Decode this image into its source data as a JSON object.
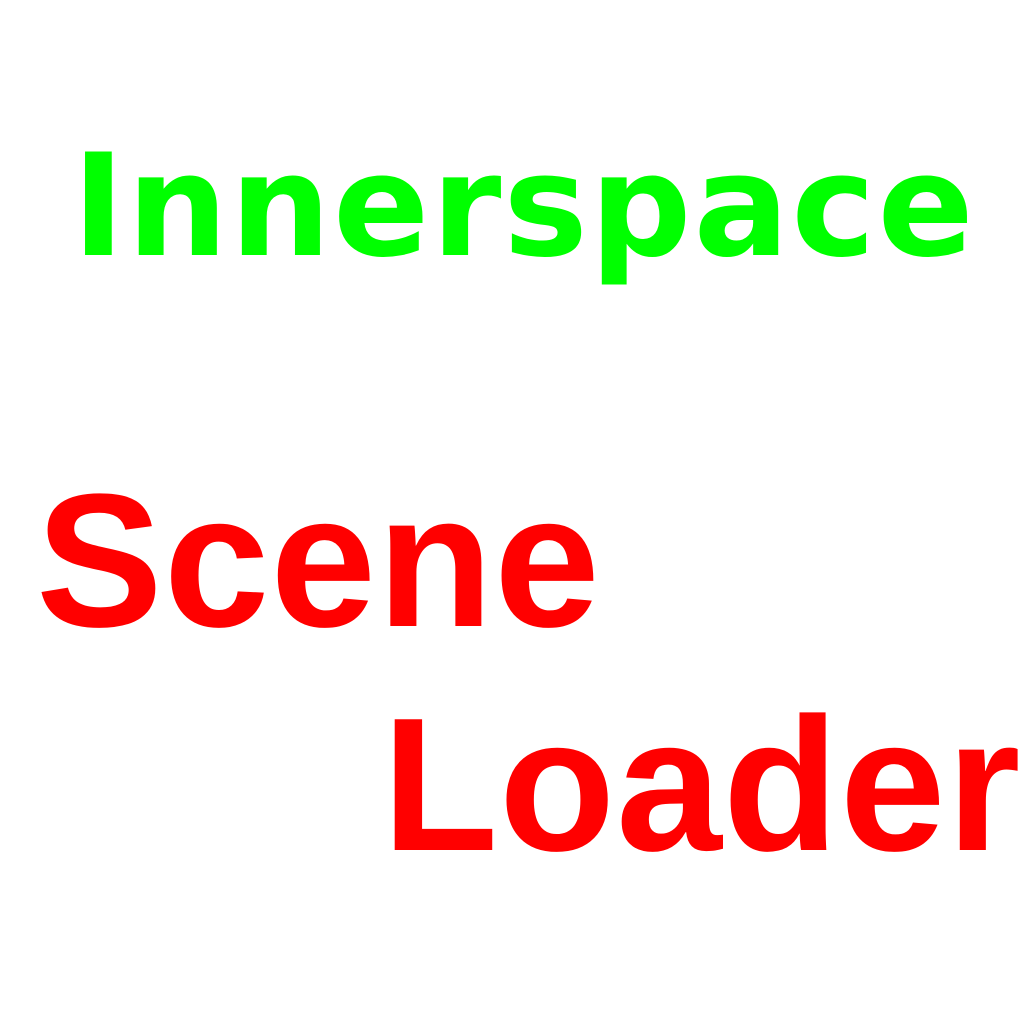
{
  "colors": {
    "background": "#ffffff",
    "brand": "#00ff00",
    "title": "#ff0000"
  },
  "brand": {
    "text": "Innerspace"
  },
  "title": {
    "line1": "Scene",
    "line2": "Loader"
  }
}
